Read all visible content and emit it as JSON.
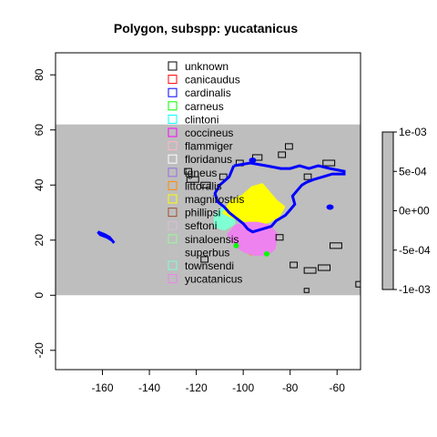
{
  "chart_data": {
    "type": "map",
    "title": "Polygon, subspp: yucatanicus",
    "xlim": [
      -180,
      -50
    ],
    "ylim": [
      -27,
      88
    ],
    "x_ticks": [
      -160,
      -140,
      -120,
      -100,
      -80,
      -60
    ],
    "y_ticks": [
      -20,
      0,
      20,
      40,
      60,
      80
    ],
    "raster_band": {
      "y_min": 0,
      "y_max": 62,
      "value": 0,
      "color": "#bebebe"
    },
    "legend": {
      "placement": "top-center",
      "entries": [
        {
          "label": "unknown",
          "color": "#000000"
        },
        {
          "label": "canicaudus",
          "color": "#ff0000"
        },
        {
          "label": "cardinalis",
          "color": "#0000ff"
        },
        {
          "label": "carneus",
          "color": "#00ff00"
        },
        {
          "label": "clintoni",
          "color": "#00ffff"
        },
        {
          "label": "coccineus",
          "color": "#ff00ff"
        },
        {
          "label": "flammiger",
          "color": "#ffb6c1"
        },
        {
          "label": "floridanus",
          "color": "#ffffff"
        },
        {
          "label": "igneus",
          "color": "#9370db"
        },
        {
          "label": "littoralis",
          "color": "#ff8c00"
        },
        {
          "label": "magnirostris",
          "color": "#ffff00"
        },
        {
          "label": "phillipsi",
          "color": "#a0522d"
        },
        {
          "label": "seftoni",
          "color": "#d8bfd8"
        },
        {
          "label": "sinaloensis",
          "color": "#98fb98"
        },
        {
          "label": "superbus",
          "color": "#c0c0c0"
        },
        {
          "label": "townsendi",
          "color": "#7fffd4"
        },
        {
          "label": "yucatanicus",
          "color": "#ee82ee"
        }
      ]
    },
    "colorbar": {
      "ticks": [
        "1e-03",
        "5e-04",
        "0e+00",
        "-5e-04",
        "-1e-03"
      ],
      "range": [
        -0.001,
        0.001
      ],
      "color": "#bebebe"
    },
    "cardinalis_outline": [
      [
        -104,
        47
      ],
      [
        -97,
        48
      ],
      [
        -90,
        47
      ],
      [
        -84,
        46
      ],
      [
        -80,
        46
      ],
      [
        -76,
        47
      ],
      [
        -72,
        46
      ],
      [
        -68,
        47
      ],
      [
        -63,
        46
      ],
      [
        -57,
        45
      ],
      [
        -57,
        44
      ],
      [
        -62,
        44
      ],
      [
        -66,
        43
      ],
      [
        -70,
        42
      ],
      [
        -73,
        41
      ],
      [
        -75,
        40
      ],
      [
        -77,
        38
      ],
      [
        -79,
        36
      ],
      [
        -78,
        33
      ],
      [
        -80,
        31
      ],
      [
        -82,
        29
      ],
      [
        -86,
        27
      ],
      [
        -88,
        25
      ],
      [
        -92,
        24
      ],
      [
        -96,
        23
      ],
      [
        -98,
        24
      ],
      [
        -100,
        26
      ],
      [
        -103,
        28
      ],
      [
        -106,
        30
      ],
      [
        -108,
        32
      ],
      [
        -111,
        34
      ],
      [
        -112,
        37
      ],
      [
        -110,
        40
      ],
      [
        -106,
        43
      ],
      [
        -104,
        47
      ]
    ],
    "cardinalis_hawaii": [
      [
        -162,
        23
      ],
      [
        -159,
        22
      ],
      [
        -157,
        21
      ],
      [
        -155,
        19
      ],
      [
        -156,
        20
      ],
      [
        -158,
        21
      ],
      [
        -161,
        22
      ],
      [
        -162,
        23
      ]
    ],
    "cardinalis_dots": [
      [
        -96,
        49
      ],
      [
        -63,
        32
      ]
    ],
    "unknown_boxes": [
      [
        -125,
        44,
        3,
        2
      ],
      [
        -124,
        41,
        5,
        2
      ],
      [
        -118,
        39,
        4,
        2
      ],
      [
        -110,
        42,
        3,
        2
      ],
      [
        -103,
        47,
        3,
        2
      ],
      [
        -96,
        49,
        4,
        2
      ],
      [
        -85,
        50,
        3,
        2
      ],
      [
        -82,
        53,
        3,
        2
      ],
      [
        -66,
        47,
        5,
        2
      ],
      [
        -74,
        42,
        3,
        2
      ],
      [
        -63,
        17,
        5,
        2
      ],
      [
        -68,
        9,
        5,
        2
      ],
      [
        -74,
        8,
        5,
        2
      ],
      [
        -80,
        10,
        3,
        2
      ],
      [
        -86,
        20,
        3,
        2
      ],
      [
        -52,
        3,
        4,
        2
      ],
      [
        -74,
        1,
        2,
        1.5
      ],
      [
        -118,
        12,
        3,
        2
      ]
    ],
    "yellow_cluster": [
      [
        -108,
        30
      ],
      [
        -105,
        34
      ],
      [
        -100,
        36
      ],
      [
        -96,
        39
      ],
      [
        -92,
        40
      ],
      [
        -89,
        37
      ],
      [
        -86,
        34
      ],
      [
        -83,
        32
      ],
      [
        -85,
        29
      ],
      [
        -89,
        27
      ],
      [
        -93,
        26
      ],
      [
        -98,
        27
      ],
      [
        -103,
        28
      ]
    ],
    "magenta_cluster": [
      [
        -106,
        22
      ],
      [
        -103,
        25
      ],
      [
        -98,
        26
      ],
      [
        -94,
        26
      ],
      [
        -89,
        25
      ],
      [
        -86,
        22
      ],
      [
        -87,
        17
      ],
      [
        -90,
        15
      ],
      [
        -95,
        15
      ],
      [
        -99,
        16
      ],
      [
        -103,
        18
      ]
    ],
    "aqua_cluster": [
      [
        -112,
        29
      ],
      [
        -108,
        32
      ],
      [
        -104,
        31
      ],
      [
        -104,
        26
      ],
      [
        -108,
        24
      ],
      [
        -112,
        25
      ]
    ],
    "orange_cluster": [
      [
        -100,
        19
      ],
      [
        -96,
        20
      ],
      [
        -92,
        19
      ],
      [
        -92,
        15
      ],
      [
        -97,
        15
      ]
    ],
    "green_dots": [
      [
        -103,
        18
      ],
      [
        -90,
        15
      ]
    ]
  }
}
